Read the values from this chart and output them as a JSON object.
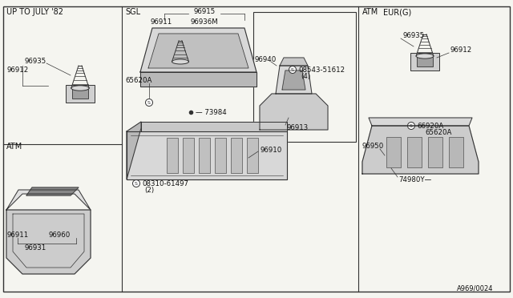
{
  "bg_color": "#f5f5f0",
  "border_color": "#333333",
  "line_color": "#333333",
  "watermark": "A969/0024",
  "sections": {
    "top_left_label": "UP TO JULY '82",
    "mid_left_label": "ATM",
    "top_mid_label": "SGL",
    "top_right_label": "ATM",
    "top_right2_label": "EUR(G)"
  },
  "parts": {
    "96935_tl": "96935",
    "96912_tl": "96912",
    "96911_sgl": "96911",
    "96936M_sgl": "96936M",
    "96915_sgl": "96915",
    "65620A_sgl": "65620A",
    "73984": "73984",
    "96910": "96910",
    "08310_61497": "08310-61497",
    "qty2": "(2)",
    "96940": "96940",
    "08543_51612": "08543-51612",
    "qty4": "(4)",
    "96913": "96913",
    "96935_eur": "96935",
    "96912_eur": "96912",
    "66920A": "66920A",
    "65620A_eur": "65620A",
    "96950": "96950",
    "74980Y": "74980Y",
    "96911_atm": "96911",
    "96960": "96960",
    "96931": "96931"
  },
  "font_size_label": 7,
  "font_size_part": 6.2,
  "font_size_watermark": 6
}
